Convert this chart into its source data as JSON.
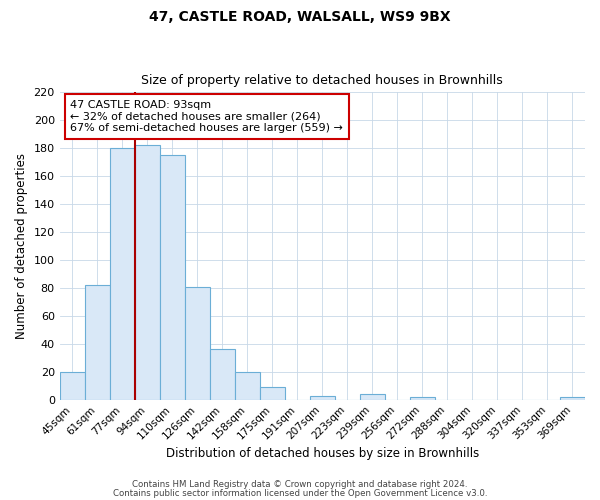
{
  "title": "47, CASTLE ROAD, WALSALL, WS9 9BX",
  "subtitle": "Size of property relative to detached houses in Brownhills",
  "xlabel": "Distribution of detached houses by size in Brownhills",
  "ylabel": "Number of detached properties",
  "bar_labels": [
    "45sqm",
    "61sqm",
    "77sqm",
    "94sqm",
    "110sqm",
    "126sqm",
    "142sqm",
    "158sqm",
    "175sqm",
    "191sqm",
    "207sqm",
    "223sqm",
    "239sqm",
    "256sqm",
    "272sqm",
    "288sqm",
    "304sqm",
    "320sqm",
    "337sqm",
    "353sqm",
    "369sqm"
  ],
  "bar_heights": [
    20,
    82,
    180,
    182,
    175,
    81,
    36,
    20,
    9,
    0,
    3,
    0,
    4,
    0,
    2,
    0,
    0,
    0,
    0,
    0,
    2
  ],
  "bar_color": "#d9e8f7",
  "bar_edge_color": "#6baed6",
  "property_line_index": 3,
  "property_line_color": "#aa0000",
  "annotation_title": "47 CASTLE ROAD: 93sqm",
  "annotation_line1": "← 32% of detached houses are smaller (264)",
  "annotation_line2": "67% of semi-detached houses are larger (559) →",
  "annotation_box_color": "#ffffff",
  "annotation_box_edge": "#cc0000",
  "ylim": [
    0,
    220
  ],
  "yticks": [
    0,
    20,
    40,
    60,
    80,
    100,
    120,
    140,
    160,
    180,
    200,
    220
  ],
  "footer1": "Contains HM Land Registry data © Crown copyright and database right 2024.",
  "footer2": "Contains public sector information licensed under the Open Government Licence v3.0.",
  "background_color": "#ffffff",
  "grid_color": "#c8d8e8"
}
